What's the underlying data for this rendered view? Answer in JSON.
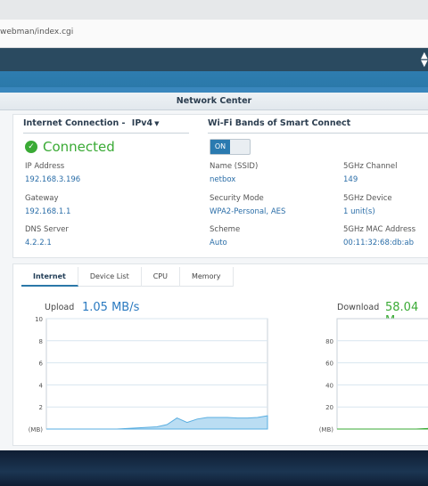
{
  "browser": {
    "url": "webman/index.cgi"
  },
  "window": {
    "title": "Network Center"
  },
  "internet": {
    "section_title": "Internet Connection",
    "separator": "-",
    "protocol": "IPv4",
    "status": "Connected",
    "ip_label": "IP Address",
    "ip_value": "192.168.3.196",
    "gateway_label": "Gateway",
    "gateway_value": "192.168.1.1",
    "dns_label": "DNS Server",
    "dns_value": "4.2.2.1"
  },
  "wifi": {
    "section_title": "Wi-Fi Bands of Smart Connect",
    "toggle_label": "ON",
    "ssid_label": "Name (SSID)",
    "ssid_value": "netbox",
    "security_label": "Security Mode",
    "security_value": "WPA2-Personal, AES",
    "scheme_label": "Scheme",
    "scheme_value": "Auto",
    "channel_label": "5GHz Channel",
    "channel_value": "149",
    "device_label": "5GHz Device",
    "device_value": "1 unit(s)",
    "mac_label": "5GHz MAC Address",
    "mac_value": "00:11:32:68:db:ab"
  },
  "tabs": [
    "Internet",
    "Device List",
    "CPU",
    "Memory"
  ],
  "upload": {
    "label": "Upload",
    "value": "1.05 MB/s"
  },
  "download": {
    "label": "Download",
    "value": "58.04 M"
  },
  "chart_data": [
    {
      "type": "area",
      "title": "",
      "ylabel": "(MB)",
      "ylim": [
        0,
        10
      ],
      "yticks": [
        "2",
        "4",
        "6",
        "8",
        "10"
      ],
      "y": [
        0,
        0,
        0,
        0,
        0,
        0,
        0,
        0,
        0.05,
        0.1,
        0.15,
        0.2,
        0.4,
        1.0,
        0.6,
        0.9,
        1.05,
        1.05,
        1.05,
        1.0,
        1.0,
        1.05,
        1.2
      ],
      "color": "#a9d4f0"
    },
    {
      "type": "area",
      "title": "",
      "ylabel": "(MB)",
      "ylim": [
        0,
        100
      ],
      "yticks": [
        "20",
        "40",
        "60",
        "80"
      ],
      "y": [
        0,
        0,
        0,
        0,
        0,
        0,
        0,
        0,
        0.5,
        1.0
      ],
      "color": "#3aaa35"
    }
  ]
}
